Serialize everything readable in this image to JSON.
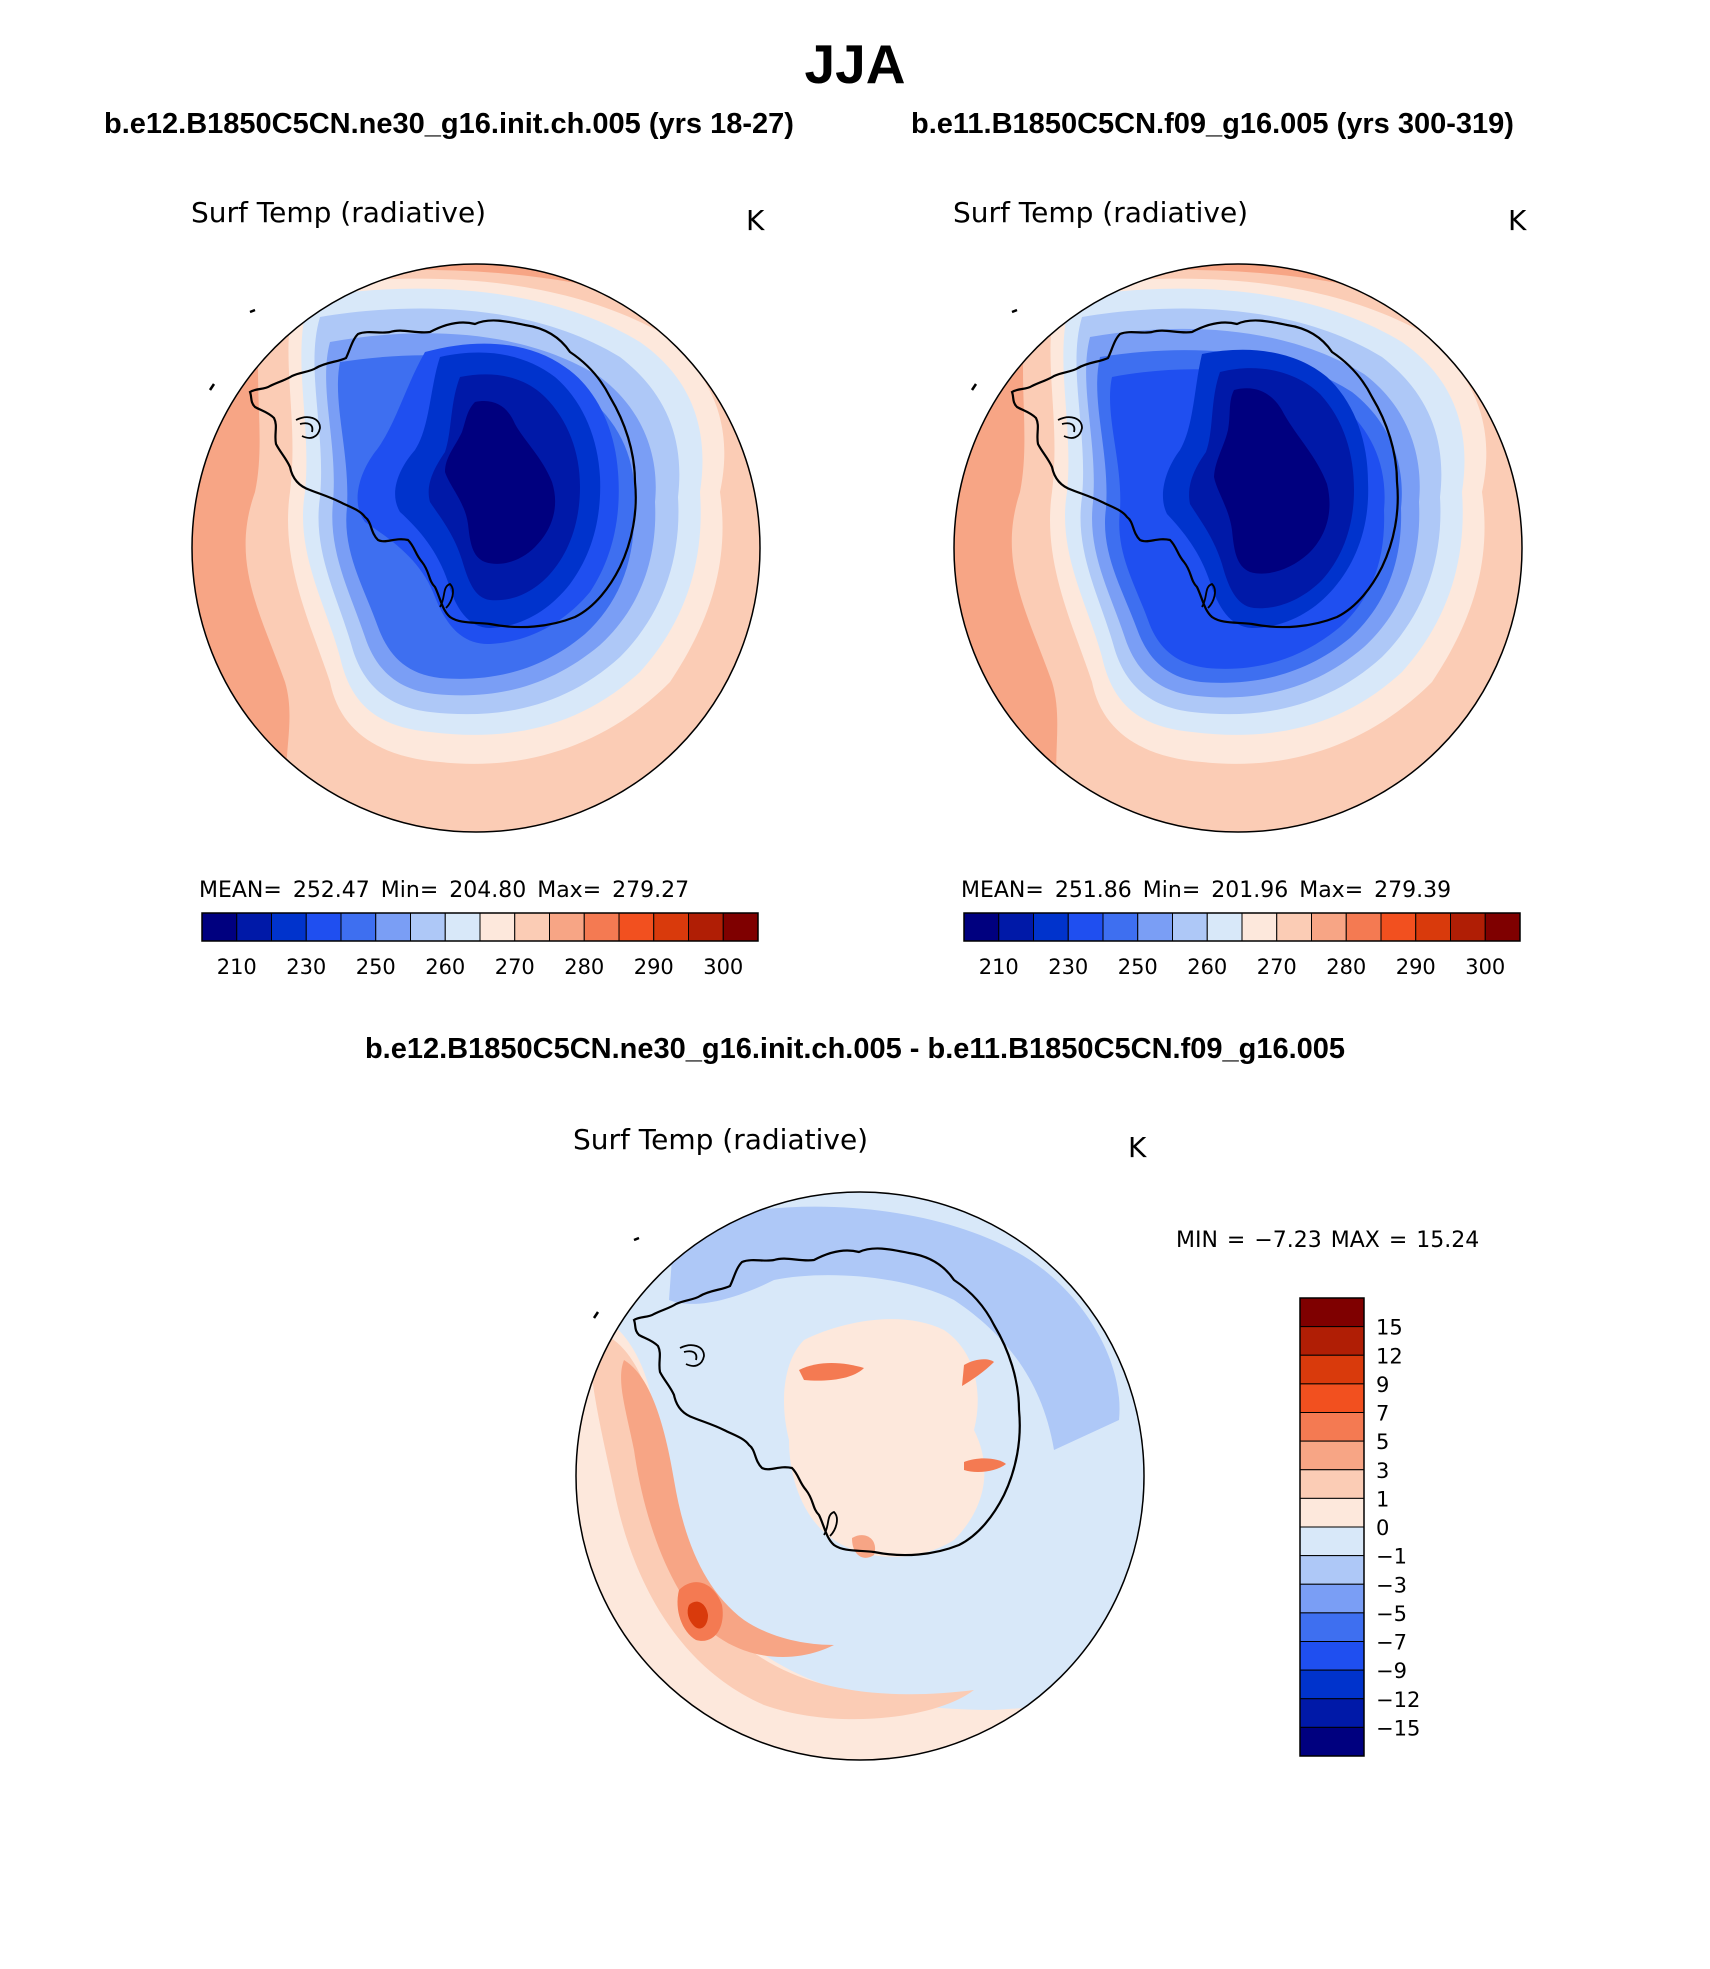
{
  "main_title": "JJA",
  "left_panel": {
    "case_title": "b.e12.B1850C5CN.ne30_g16.init.ch.005 (yrs 18-27)",
    "variable": "Surf Temp (radiative)",
    "units": "K",
    "stats": "MEAN= 252.47   Min= 204.80   Max= 279.27"
  },
  "right_panel": {
    "case_title": "b.e11.B1850C5CN.f09_g16.005 (yrs 300-319)",
    "variable": "Surf Temp (radiative)",
    "units": "K",
    "stats": "MEAN= 251.86   Min= 201.96   Max= 279.39"
  },
  "diff_panel": {
    "title": "b.e12.B1850C5CN.ne30_g16.init.ch.005 - b.e11.B1850C5CN.f09_g16.005",
    "variable": "Surf Temp (radiative)",
    "units": "K",
    "minmax": "MIN =   −7.23 MAX =    15.24"
  },
  "abs_colorbar": {
    "colors": [
      "#00007f",
      "#0019a8",
      "#0033cc",
      "#1f4ff0",
      "#3e6ff0",
      "#7a9ef5",
      "#aec8f7",
      "#d8e8f9",
      "#fde8dc",
      "#fbccb5",
      "#f7a585",
      "#f47a52",
      "#f2501f",
      "#d93a0c",
      "#b01e05",
      "#7f0000"
    ],
    "labels": [
      "210",
      "230",
      "250",
      "260",
      "270",
      "280",
      "290",
      "300"
    ]
  },
  "diff_colorbar": {
    "colors": [
      "#00007f",
      "#0019a8",
      "#0033cc",
      "#1f4ff0",
      "#3e6ff0",
      "#7a9ef5",
      "#aec8f7",
      "#d8e8f9",
      "#fde8dc",
      "#fbccb5",
      "#f7a585",
      "#f47a52",
      "#f2501f",
      "#d93a0c",
      "#b01e05",
      "#7f0000"
    ],
    "labels": [
      "15",
      "12",
      "9",
      "7",
      "5",
      "3",
      "1",
      "0",
      "−1",
      "−3",
      "−5",
      "−7",
      "−9",
      "−12",
      "−15"
    ]
  },
  "map_colors": {
    "ocean_warm": "#f7a585",
    "ocean_mid": "#fbccb5",
    "ocean_light": "#fde8dc",
    "sea_ice_edge": "#d8e8f9",
    "ice_1": "#aec8f7",
    "ice_2": "#7a9ef5",
    "ice_3": "#3e6ff0",
    "land_1": "#1f4ff0",
    "land_2": "#0033cc",
    "land_3": "#0019a8",
    "land_4": "#00007f",
    "coastline": "#000000"
  },
  "diff_map_colors": {
    "base": "#d8e8f9",
    "blue_light": "#aec8f7",
    "pink": "#fde8dc",
    "salmon": "#fbccb5",
    "orange": "#f7a585",
    "red": "#f47a52",
    "darkred": "#d93a0c"
  }
}
